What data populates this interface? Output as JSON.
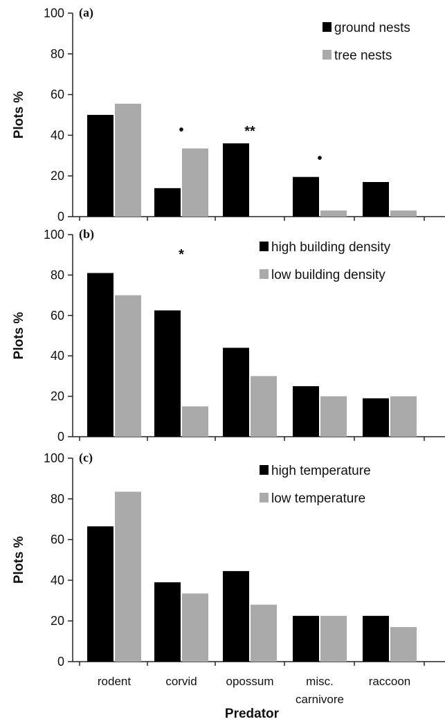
{
  "chart_data": [
    {
      "type": "bar",
      "panel_label": "(a)",
      "ylabel": "Plots %",
      "ylim": [
        0,
        100
      ],
      "yticks": [
        0,
        20,
        40,
        60,
        80,
        100
      ],
      "categories": [
        "rodent",
        "corvid",
        "opossum",
        "misc.\ncarnivore",
        "raccoon"
      ],
      "legend_position": "top-right",
      "series": [
        {
          "name": "ground nests",
          "color": "#000000",
          "values": [
            50,
            14,
            36,
            19.5,
            17
          ]
        },
        {
          "name": "tree nests",
          "color": "#aaaaaa",
          "values": [
            55.5,
            33.5,
            0,
            3,
            3
          ]
        }
      ],
      "annotations": [
        {
          "category_index": 1,
          "text": "•"
        },
        {
          "category_index": 2,
          "text": "**"
        },
        {
          "category_index": 3,
          "text": "•"
        }
      ]
    },
    {
      "type": "bar",
      "panel_label": "(b)",
      "ylabel": "Plots %",
      "ylim": [
        0,
        100
      ],
      "yticks": [
        0,
        20,
        40,
        60,
        80,
        100
      ],
      "categories": [
        "rodent",
        "corvid",
        "opossum",
        "misc.\ncarnivore",
        "raccoon"
      ],
      "legend_position": "top-right",
      "series": [
        {
          "name": "high building density",
          "color": "#000000",
          "values": [
            81,
            62.5,
            44,
            25,
            19
          ]
        },
        {
          "name": "low building density",
          "color": "#aaaaaa",
          "values": [
            70,
            15,
            30,
            20,
            20
          ]
        }
      ],
      "annotations": [
        {
          "category_index": 1,
          "text": "*"
        }
      ]
    },
    {
      "type": "bar",
      "panel_label": "(c)",
      "ylabel": "Plots %",
      "xlabel": "Predator",
      "ylim": [
        0,
        100
      ],
      "yticks": [
        0,
        20,
        40,
        60,
        80,
        100
      ],
      "categories": [
        "rodent",
        "corvid",
        "opossum",
        "misc.\ncarnivore",
        "raccoon"
      ],
      "legend_position": "top-right",
      "series": [
        {
          "name": "high temperature",
          "color": "#000000",
          "values": [
            66.5,
            39,
            44.5,
            22.5,
            22.5
          ]
        },
        {
          "name": "low temperature",
          "color": "#aaaaaa",
          "values": [
            83.5,
            33.5,
            28,
            22.5,
            17
          ]
        }
      ],
      "annotations": []
    }
  ]
}
